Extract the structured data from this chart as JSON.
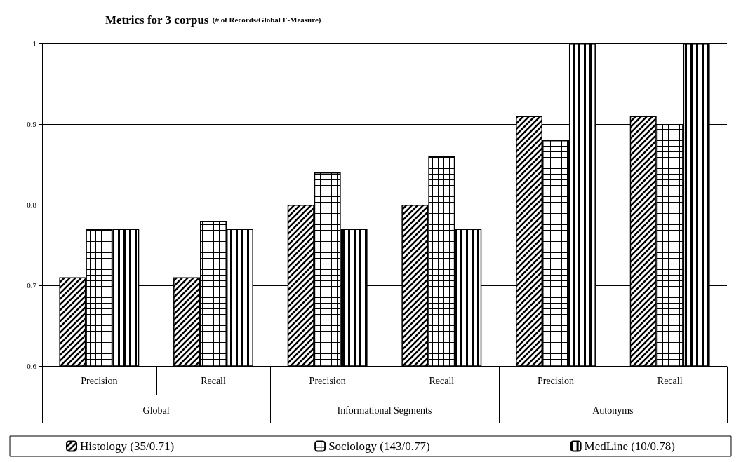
{
  "chart_data": {
    "type": "bar",
    "title": "Metrics for 3 corpus",
    "subtitle": "(# of Records/Global F-Measure)",
    "categories": [
      "Precision",
      "Recall",
      "Precision",
      "Recall",
      "Precision",
      "Recall"
    ],
    "series": [
      {
        "name": "Histology (35/0.71)",
        "color": "#000000",
        "values": [
          0.71,
          0.71,
          0.8,
          0.8,
          0.91,
          0.91
        ]
      },
      {
        "name": "Sociology (143/0.77)",
        "color": "#000000",
        "values": [
          0.77,
          0.78,
          0.84,
          0.86,
          0.88,
          0.9
        ]
      },
      {
        "name": "MedLine (10/0.78)",
        "color": "#000000",
        "values": [
          0.77,
          0.77,
          0.77,
          0.77,
          1,
          1
        ]
      }
    ],
    "annotations": [
      "Global",
      "Informational Segments",
      "Autonyms"
    ],
    "ylim": [
      0.6,
      1
    ],
    "yticks": [
      0.6,
      0.7,
      0.8,
      0.9,
      1
    ],
    "grid": "y",
    "legend": "bottom"
  }
}
